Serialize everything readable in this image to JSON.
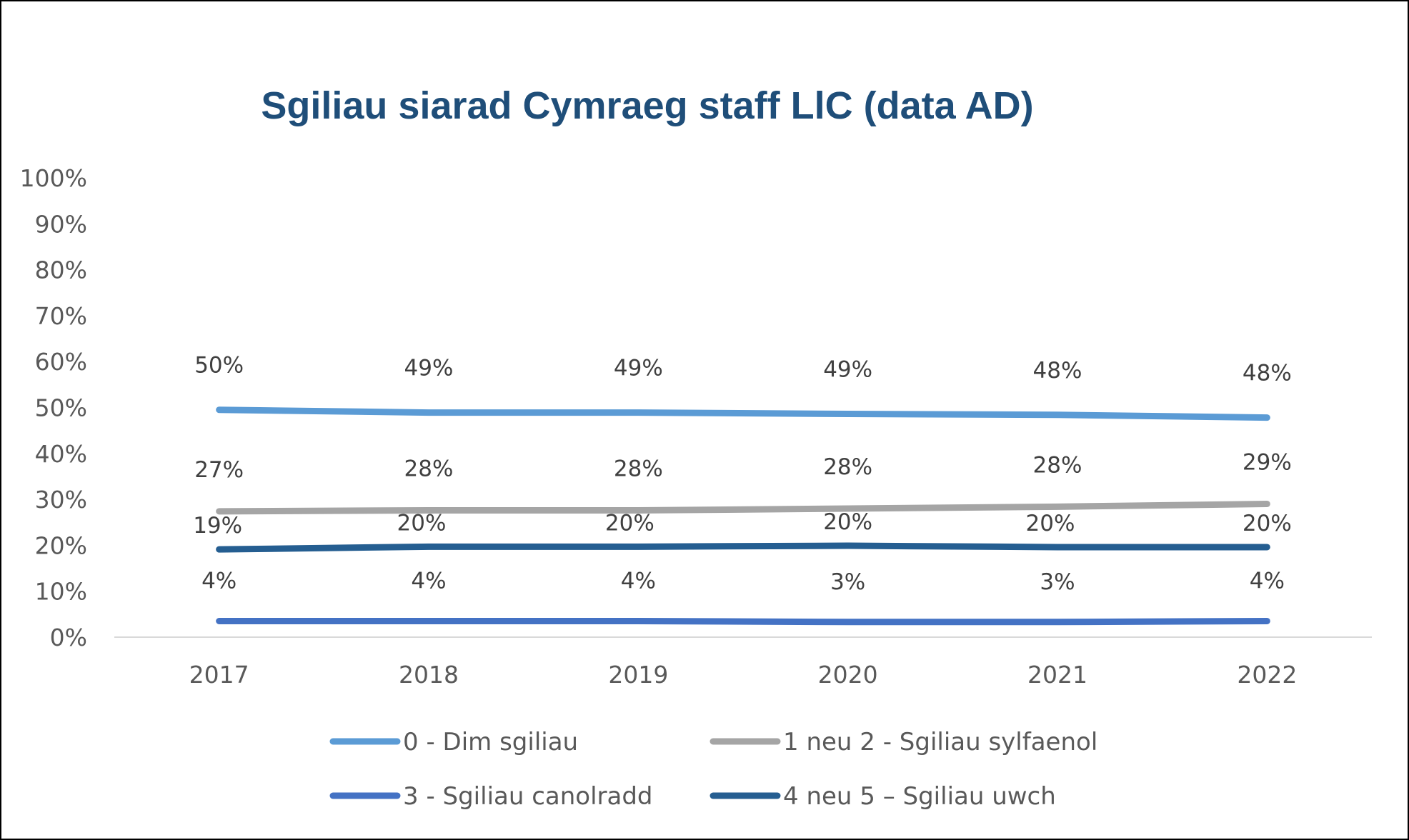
{
  "chart_data": {
    "type": "line",
    "title": "Sgiliau siarad Cymraeg staff LlC (data AD)",
    "x": [
      "2017",
      "2018",
      "2019",
      "2020",
      "2021",
      "2022"
    ],
    "yticks": [
      "0%",
      "10%",
      "20%",
      "30%",
      "40%",
      "50%",
      "60%",
      "70%",
      "80%",
      "90%",
      "100%"
    ],
    "ylim": [
      0,
      100
    ],
    "grid": false,
    "legend_position": "bottom",
    "title_color": "#1f4e79",
    "series": [
      {
        "name": "0 - Dim sgiliau",
        "color": "#5b9bd5",
        "values": [
          49.5,
          48.9,
          48.9,
          48.6,
          48.4,
          47.8
        ],
        "labels": [
          "50%",
          "49%",
          "49%",
          "49%",
          "48%",
          "48%"
        ]
      },
      {
        "name": "1 neu 2 - Sgiliau sylfaenol",
        "color": "#a5a5a5",
        "values": [
          27.4,
          27.6,
          27.6,
          28.0,
          28.4,
          29.0
        ],
        "labels": [
          "27%",
          "28%",
          "28%",
          "28%",
          "28%",
          "29%"
        ]
      },
      {
        "name": "3 - Sgiliau canolradd",
        "color": "#4472c4",
        "values": [
          3.5,
          3.5,
          3.5,
          3.3,
          3.3,
          3.5
        ],
        "labels": [
          "4%",
          "4%",
          "4%",
          "3%",
          "3%",
          "4%"
        ]
      },
      {
        "name": "4 neu 5 – Sgiliau uwch",
        "color": "#255e91",
        "values": [
          19.1,
          19.7,
          19.7,
          19.9,
          19.6,
          19.6
        ],
        "labels": [
          "19%",
          "20%",
          "20%",
          "20%",
          "20%",
          "20%"
        ]
      }
    ]
  }
}
